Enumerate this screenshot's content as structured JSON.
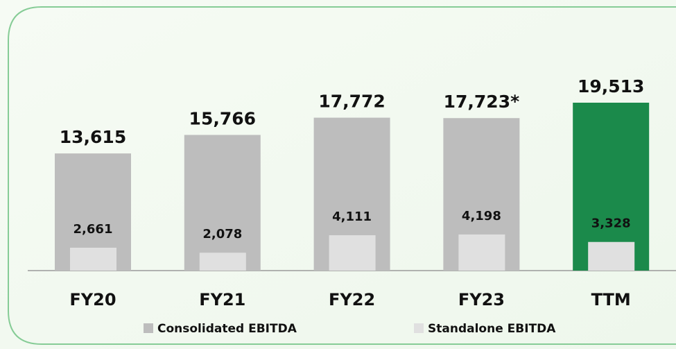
{
  "chart_data": {
    "type": "bar",
    "categories": [
      "FY20",
      "FY21",
      "FY22",
      "FY23",
      "TTM"
    ],
    "series": [
      {
        "name": "Consolidated EBITDA",
        "color": "#bdbdbd",
        "colors": [
          "#bdbdbd",
          "#bdbdbd",
          "#bdbdbd",
          "#bdbdbd",
          "#1b8a4b"
        ],
        "values": [
          13615,
          15766,
          17772,
          17723,
          19513
        ],
        "value_labels": [
          "13,615",
          "15,766",
          "17,772",
          "17,723*",
          "19,513"
        ]
      },
      {
        "name": "Standalone EBITDA",
        "color": "#e0e0e0",
        "values": [
          2661,
          2078,
          4111,
          4198,
          3328
        ],
        "value_labels": [
          "2,661",
          "2,078",
          "4,111",
          "4,198",
          "3,328"
        ]
      }
    ],
    "legend": "bottom"
  }
}
